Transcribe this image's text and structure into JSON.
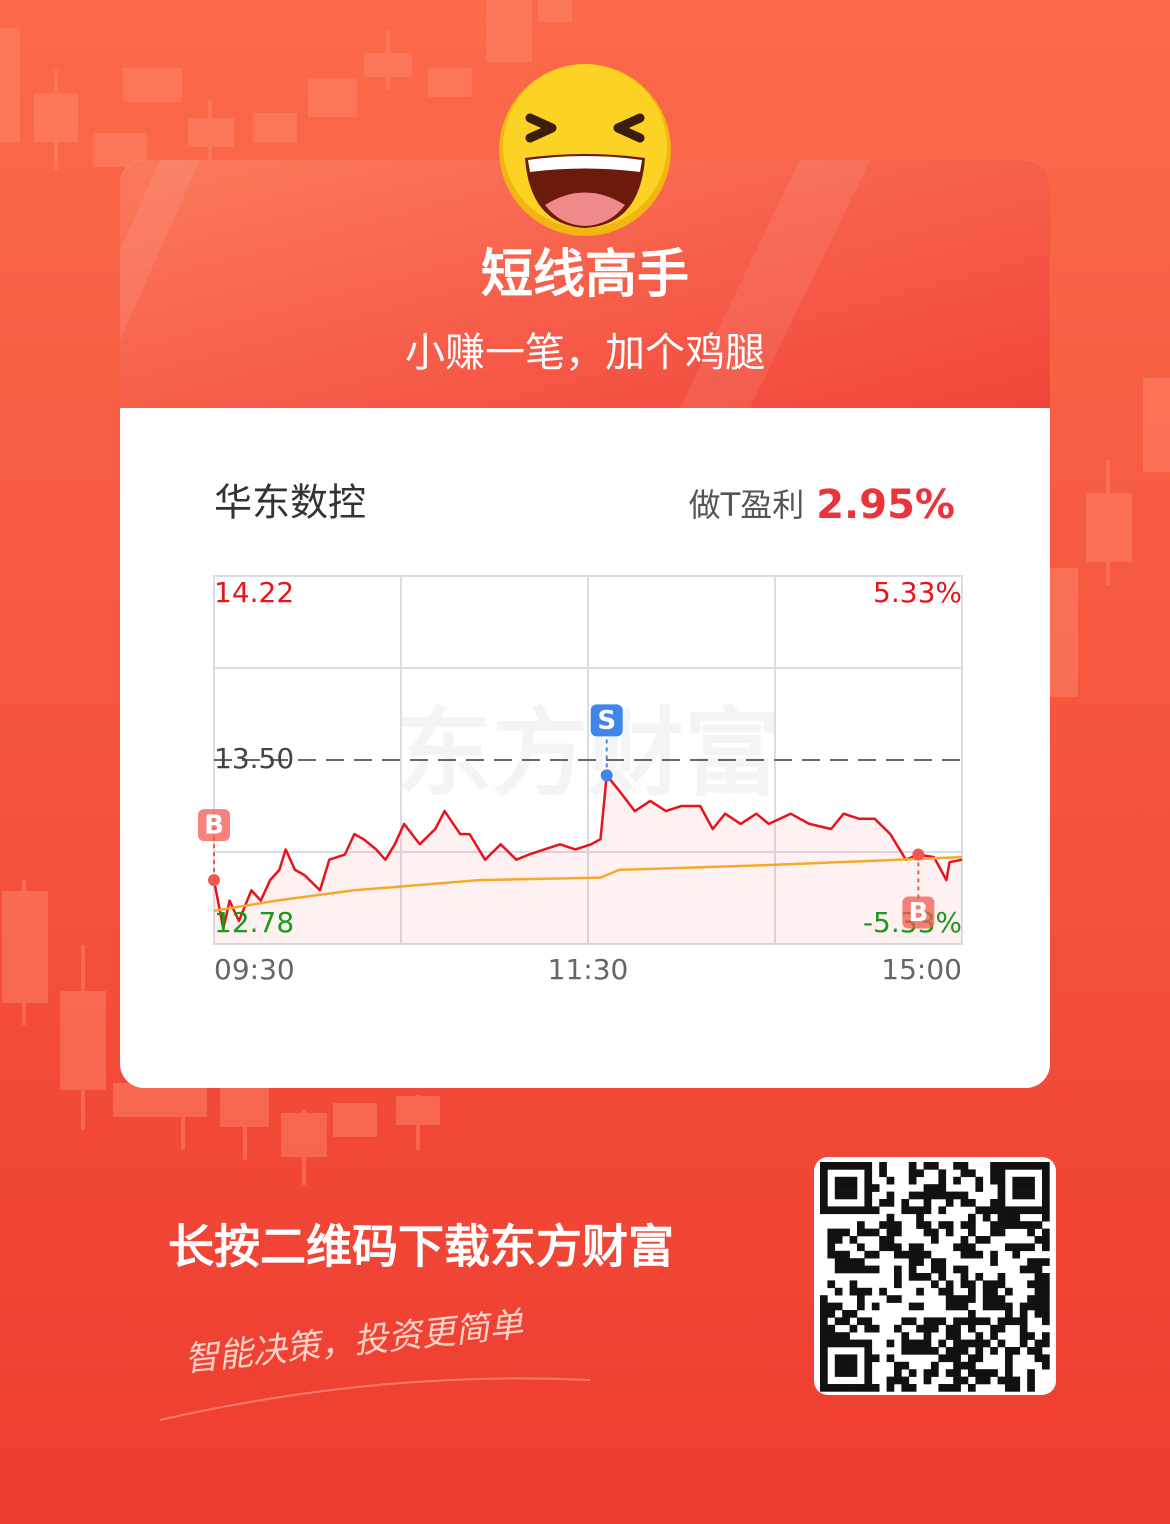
{
  "header": {
    "title": "短线高手",
    "subtitle": "小赚一笔，加个鸡腿"
  },
  "stock": {
    "name": "华东数控",
    "profit_label": "做T盈利",
    "profit": "2.95%"
  },
  "chart": {
    "type": "line",
    "watermark": "东方财富",
    "xlim": [
      0,
      240
    ],
    "xticks": [
      {
        "value": 0,
        "label": "09:30"
      },
      {
        "value": 120,
        "label": "11:30"
      },
      {
        "value": 240,
        "label": "15:00"
      }
    ],
    "xgrid": [
      60,
      120,
      180
    ],
    "ylim": [
      12.78,
      14.22
    ],
    "yticks": [
      14.22,
      {
        "value": 13.5,
        "label": "13.50"
      },
      12.78
    ],
    "ygrid": [
      13.86,
      13.14
    ],
    "reference": 13.5,
    "y2lim": [
      -5.33,
      5.33
    ],
    "y2ticks": [
      {
        "value": 5.33,
        "label": "5.33%"
      },
      {
        "value": -5.33,
        "label": "-5.33%"
      }
    ],
    "series": [
      {
        "color": "#e8141b",
        "x": [
          0,
          3,
          5,
          8,
          12,
          15,
          18,
          21,
          23,
          26,
          29,
          34,
          37,
          42,
          45,
          48,
          52,
          55,
          58,
          61,
          66,
          71,
          74,
          79,
          82,
          87,
          92,
          97,
          101,
          106,
          111,
          116,
          121,
          124,
          126,
          130,
          135,
          140,
          145,
          150,
          156,
          160,
          164,
          169,
          174,
          178,
          185,
          191,
          198,
          202,
          207,
          212,
          217,
          222,
          226,
          231,
          235,
          236,
          240
        ],
        "values": [
          13.03,
          12.84,
          12.95,
          12.87,
          12.99,
          12.95,
          13.03,
          13.07,
          13.15,
          13.07,
          13.05,
          12.99,
          13.11,
          13.13,
          13.21,
          13.19,
          13.15,
          13.11,
          13.17,
          13.25,
          13.17,
          13.23,
          13.3,
          13.21,
          13.21,
          13.11,
          13.17,
          13.11,
          13.13,
          13.15,
          13.17,
          13.15,
          13.17,
          13.19,
          13.44,
          13.38,
          13.3,
          13.34,
          13.3,
          13.32,
          13.32,
          13.23,
          13.29,
          13.25,
          13.29,
          13.25,
          13.29,
          13.25,
          13.23,
          13.29,
          13.27,
          13.27,
          13.21,
          13.11,
          13.13,
          13.12,
          13.03,
          13.1,
          13.11
        ]
      },
      {
        "color": "#f6a82b",
        "x": [
          0,
          20,
          45,
          85,
          124,
          130,
          180,
          240
        ],
        "values": [
          12.91,
          12.95,
          12.99,
          13.03,
          13.04,
          13.07,
          13.09,
          13.12
        ]
      }
    ],
    "trades": [
      {
        "label": "B",
        "x": 0,
        "price": 13.03,
        "color": "#f0594f"
      },
      {
        "label": "S",
        "x": 126,
        "price": 13.44,
        "color": "#3f86e8"
      },
      {
        "label": "B",
        "x": 226,
        "price": 13.13,
        "color": "#f0594f"
      }
    ]
  },
  "footer": {
    "cta": "长按二维码下载东方财富",
    "slogan": "智能决策，投资更简单"
  }
}
